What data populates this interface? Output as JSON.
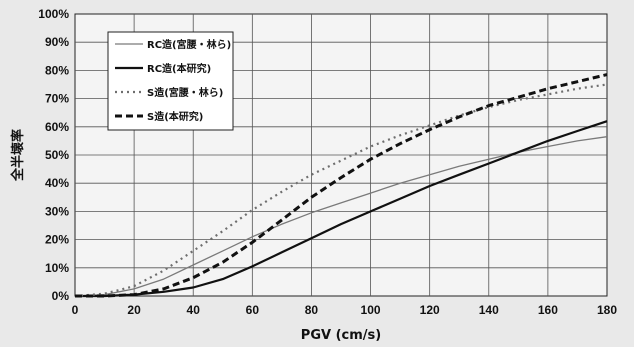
{
  "chart_data": {
    "type": "line",
    "title": "",
    "xlabel": "PGV (cm/s)",
    "ylabel": "全半壊率",
    "xlim": [
      0,
      180
    ],
    "ylim": [
      0,
      100
    ],
    "x_ticks": [
      0,
      20,
      40,
      60,
      80,
      100,
      120,
      140,
      160,
      180
    ],
    "y_ticks": [
      0,
      10,
      20,
      30,
      40,
      50,
      60,
      70,
      80,
      90,
      100
    ],
    "y_tick_suffix": "%",
    "grid": {
      "horizontal": true,
      "vertical": true
    },
    "legend_position": "top-left",
    "series": [
      {
        "name": "RC造(宮腰・林ら)",
        "style": "thin-gray-solid",
        "color": "#777777",
        "x": [
          0,
          10,
          20,
          30,
          40,
          50,
          60,
          70,
          80,
          90,
          100,
          110,
          120,
          130,
          140,
          150,
          160,
          170,
          180
        ],
        "y": [
          0,
          0.5,
          2.5,
          6,
          11,
          16,
          21,
          25.5,
          29.5,
          33,
          36.5,
          40,
          43,
          46,
          48.5,
          51,
          53,
          55,
          56.5
        ]
      },
      {
        "name": "RC造(本研究)",
        "style": "thick-black-solid",
        "color": "#111111",
        "x": [
          0,
          10,
          20,
          30,
          40,
          50,
          60,
          70,
          80,
          90,
          100,
          110,
          120,
          130,
          140,
          150,
          160,
          170,
          180
        ],
        "y": [
          0,
          0,
          0.5,
          1.5,
          3,
          6,
          10.5,
          15.5,
          20.5,
          25.5,
          30,
          34.5,
          39,
          43,
          47,
          51,
          55,
          58.5,
          62
        ]
      },
      {
        "name": "S造(宮腰・林ら)",
        "style": "gray-dotted",
        "color": "#777777",
        "x": [
          0,
          10,
          20,
          30,
          40,
          50,
          60,
          70,
          80,
          90,
          100,
          110,
          120,
          130,
          140,
          150,
          160,
          170,
          180
        ],
        "y": [
          0,
          0.8,
          3.5,
          9,
          16,
          23,
          30.5,
          37,
          43,
          48,
          53,
          57,
          60.5,
          64,
          67,
          69.5,
          71.5,
          73.5,
          75
        ]
      },
      {
        "name": "S造(本研究)",
        "style": "thick-black-dashed",
        "color": "#111111",
        "x": [
          0,
          10,
          20,
          30,
          40,
          50,
          60,
          70,
          80,
          90,
          100,
          110,
          120,
          130,
          140,
          150,
          160,
          170,
          180
        ],
        "y": [
          0,
          0,
          0.5,
          2.5,
          6.5,
          12,
          19,
          27,
          35,
          42,
          48.5,
          54,
          59,
          63.5,
          67.5,
          70.5,
          73.5,
          76,
          78.5
        ]
      }
    ]
  }
}
